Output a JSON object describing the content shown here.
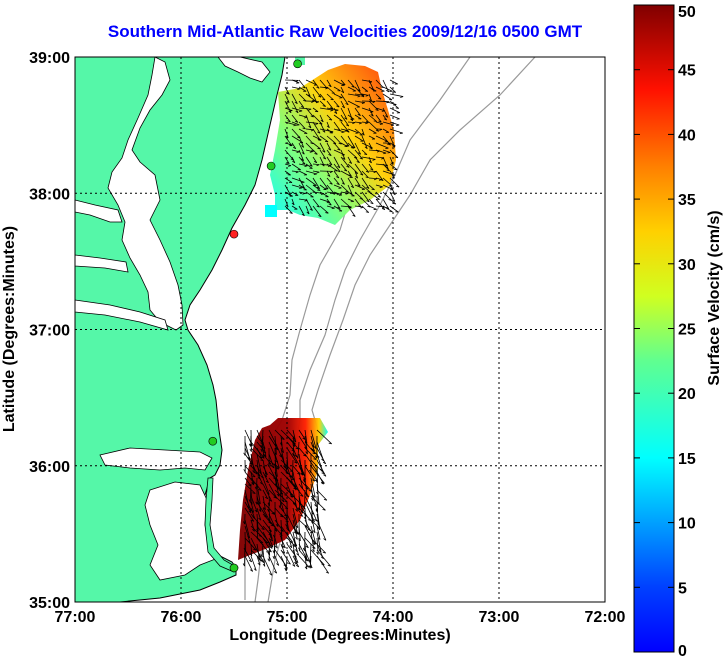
{
  "title": "Southern Mid-Atlantic Raw Velocities 2009/12/16 0500 GMT",
  "map": {
    "xlabel": "Longitude (Degrees:Minutes)",
    "ylabel": "Latitude (Degrees:Minutes)",
    "xticks": [
      "77:00",
      "76:00",
      "75:00",
      "74:00",
      "73:00",
      "72:00"
    ],
    "yticks": [
      "39:00",
      "38:00",
      "37:00",
      "36:00",
      "35:00"
    ],
    "lon_range": [
      -77,
      -72
    ],
    "lat_range": [
      35,
      39
    ],
    "colors": {
      "land": "#55f7a8",
      "coast": "#000000",
      "isobath": "#9a9a9a",
      "grid": "#000000",
      "arrows": "#000000"
    }
  },
  "colorbar": {
    "label": "Surface Velocity (cm/s)",
    "min": 0,
    "max": 50,
    "ticks": [
      "0",
      "5",
      "10",
      "15",
      "20",
      "25",
      "30",
      "35",
      "40",
      "45",
      "50"
    ],
    "colormap": "jet"
  },
  "stations": [
    {
      "lon": -74.9,
      "lat": 38.95,
      "color": "#22cc22"
    },
    {
      "lon": -75.15,
      "lat": 38.2,
      "color": "#22cc22"
    },
    {
      "lon": -75.5,
      "lat": 37.7,
      "color": "#ff2222"
    },
    {
      "lon": -75.7,
      "lat": 36.18,
      "color": "#22cc22"
    },
    {
      "lon": -75.5,
      "lat": 35.25,
      "color": "#22cc22"
    }
  ]
}
